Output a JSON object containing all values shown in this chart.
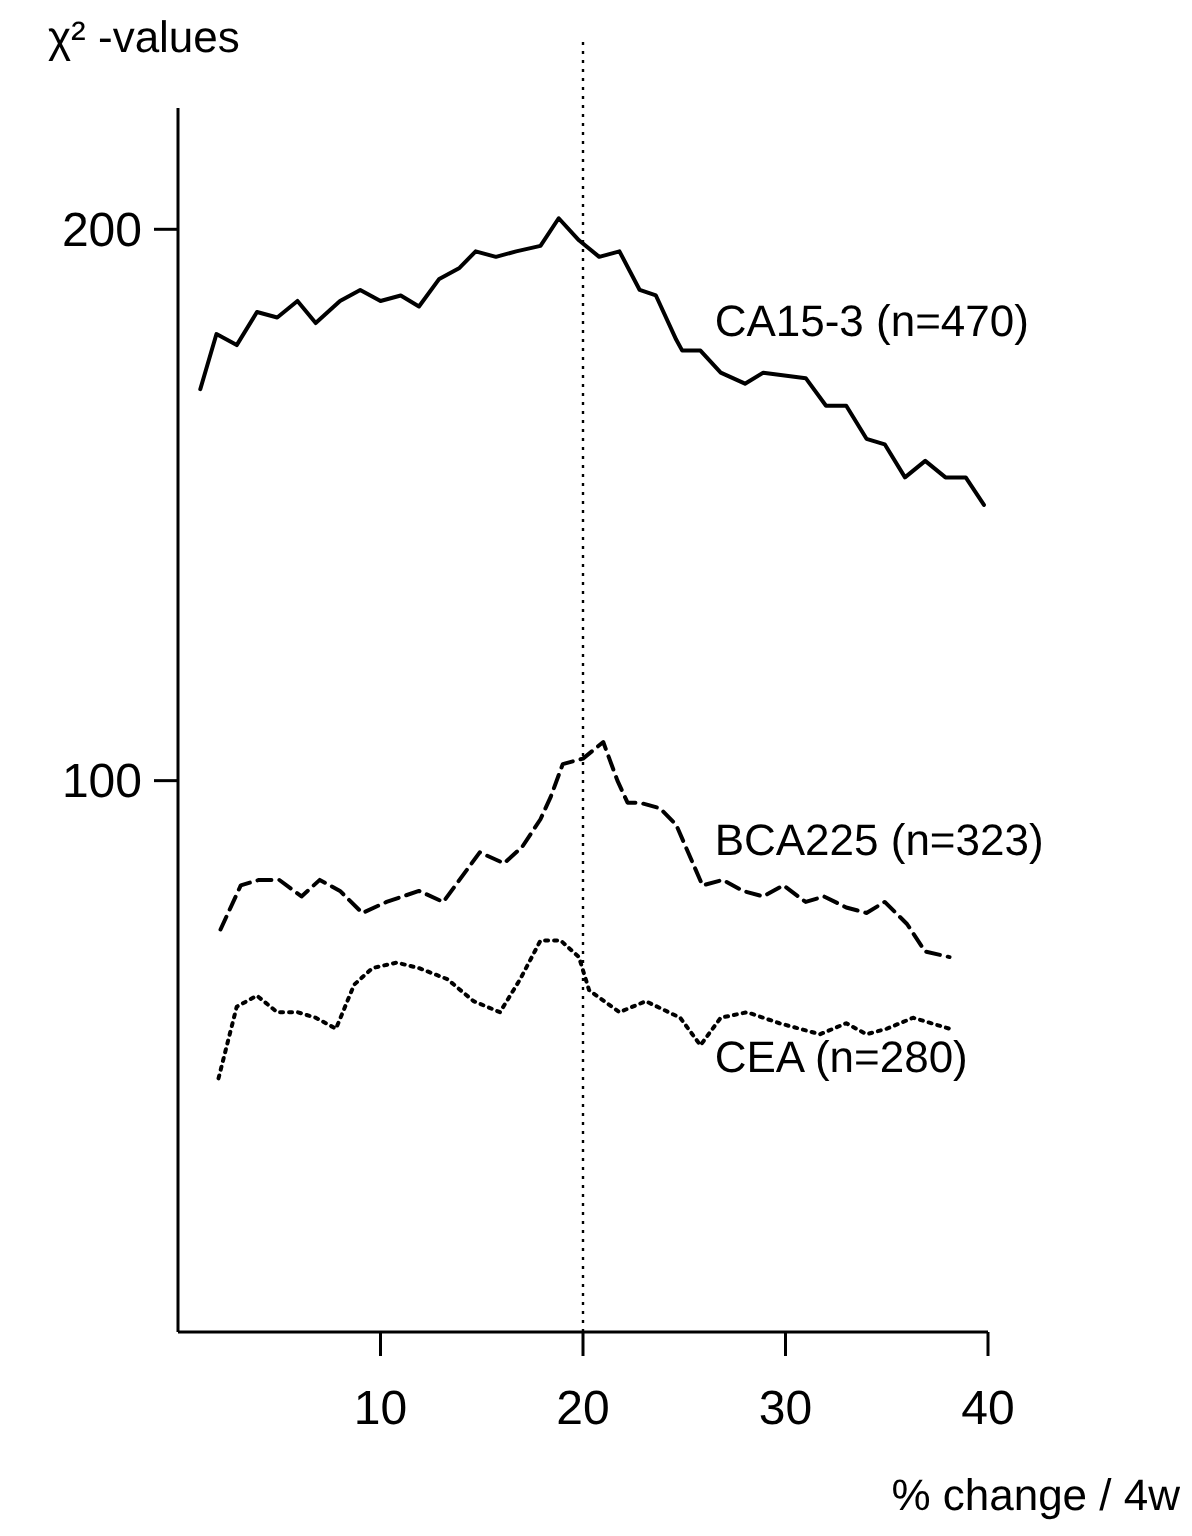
{
  "chart_data": {
    "type": "line",
    "ylabel": "χ² -values",
    "xlabel": "% change / 4w",
    "xlim": [
      0,
      40
    ],
    "ylim": [
      0,
      222
    ],
    "xticks": [
      10,
      20,
      30,
      40
    ],
    "yticks": [
      100,
      200
    ],
    "grid": false,
    "marker": "none",
    "ref_lines": [
      {
        "axis": "x",
        "value": 20,
        "line_style": "dotted",
        "color": "#000000"
      }
    ],
    "series": [
      {
        "name": "CA15-3 (n=470)",
        "color": "#000000",
        "line_style": "solid",
        "x": [
          1.1,
          1.9,
          2.9,
          3.9,
          4.9,
          5.9,
          6.8,
          8.0,
          9.0,
          10.0,
          11.0,
          11.9,
          12.9,
          13.9,
          14.7,
          15.7,
          16.7,
          17.9,
          18.8,
          19.8,
          20.8,
          21.8,
          22.8,
          23.6,
          24.6,
          24.9,
          25.8,
          26.8,
          28.0,
          28.9,
          31.0,
          32.0,
          33.0,
          34.0,
          34.9,
          35.9,
          36.9,
          37.9,
          38.9,
          39.8
        ],
        "values": [
          171,
          181,
          179,
          185,
          184,
          187,
          183,
          187,
          189,
          187,
          188,
          186,
          191,
          193,
          196,
          195,
          196,
          197,
          202,
          198,
          195,
          196,
          189,
          188,
          180,
          178,
          178,
          174,
          172,
          174,
          173,
          168,
          168,
          162,
          161,
          155,
          158,
          155,
          155,
          150
        ]
      },
      {
        "name": "BCA225 (n=323)",
        "color": "#000000",
        "line_style": "dashed",
        "x": [
          2.1,
          3.1,
          4.0,
          5.0,
          6.1,
          7.0,
          8.0,
          9.1,
          10.3,
          11.9,
          13.1,
          13.9,
          14.9,
          16.1,
          17.0,
          17.9,
          18.4,
          19.0,
          20.0,
          21.0,
          21.7,
          22.2,
          22.8,
          23.8,
          24.6,
          25.9,
          26.9,
          27.9,
          28.9,
          29.9,
          31.0,
          31.9,
          33.0,
          34.0,
          34.9,
          36.0,
          36.9,
          38.1
        ],
        "values": [
          73,
          81,
          82,
          82,
          79,
          82,
          80,
          76,
          78,
          80,
          78,
          82,
          87,
          85,
          88,
          93,
          97,
          103,
          104,
          107,
          100,
          96,
          96,
          95,
          92,
          81,
          82,
          80,
          79,
          81,
          78,
          79,
          77,
          76,
          78,
          74,
          69,
          68
        ]
      },
      {
        "name": "CEA (n=280)",
        "color": "#000000",
        "line_style": "dotted",
        "x": [
          2.0,
          2.9,
          3.9,
          4.9,
          5.9,
          6.8,
          7.8,
          8.7,
          9.6,
          10.8,
          11.9,
          13.3,
          14.6,
          15.9,
          16.9,
          17.9,
          18.9,
          19.8,
          20.3,
          21.8,
          23.1,
          24.8,
          25.8,
          26.8,
          28.1,
          29.7,
          31.7,
          33.0,
          34.0,
          35.0,
          36.3,
          38.1
        ],
        "values": [
          46,
          59,
          61,
          58,
          58,
          57,
          55,
          63,
          66,
          67,
          66,
          64,
          60,
          58,
          64,
          71,
          71,
          68,
          62,
          58,
          60,
          57,
          52,
          57,
          58,
          56,
          54,
          56,
          54,
          55,
          57,
          55
        ]
      }
    ]
  }
}
